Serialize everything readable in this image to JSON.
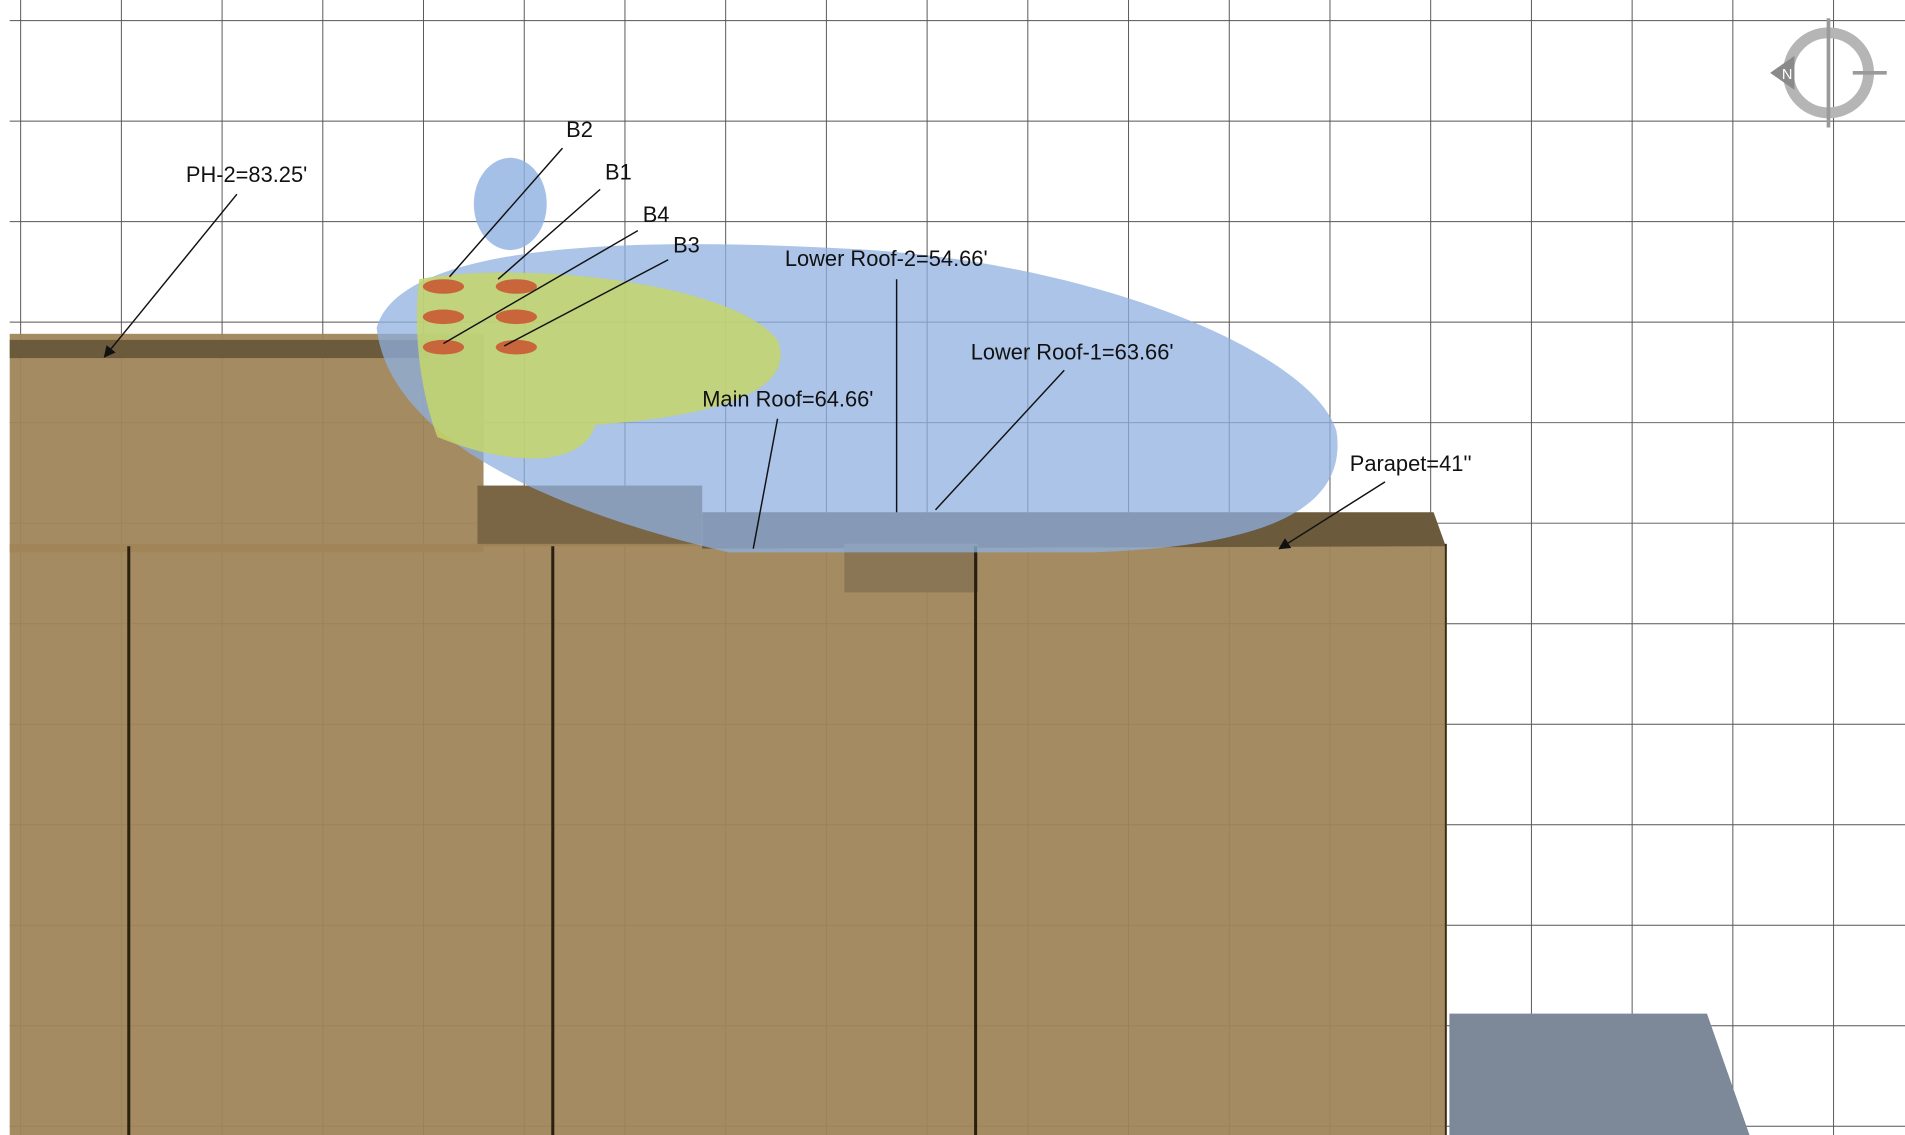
{
  "annotations": [
    {
      "text": "PH-2=83.25'"
    },
    {
      "text": "B2"
    },
    {
      "text": "B1"
    },
    {
      "text": "B4"
    },
    {
      "text": "B3"
    },
    {
      "text": "Lower Roof-2=54.66'"
    },
    {
      "text": "Lower Roof-1=63.66'"
    },
    {
      "text": "Main Roof=64.66'"
    },
    {
      "text": "Parapet=41''"
    }
  ],
  "compass": {
    "label": "N"
  }
}
